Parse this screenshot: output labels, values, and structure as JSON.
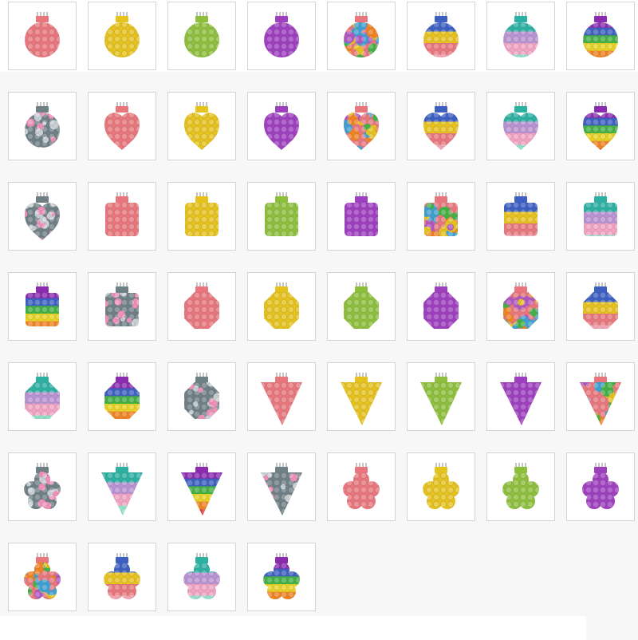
{
  "palettes": {
    "pink": [
      "#e8767c"
    ],
    "yellow": [
      "#e6c21c"
    ],
    "green": [
      "#8dbf3c"
    ],
    "purple": [
      "#9e3fbf"
    ],
    "rainbow": [
      "#3d5fc2",
      "#e8c21c",
      "#e8767c",
      "#f2a6b4"
    ],
    "pastel": [
      "#2bb0a2",
      "#b992d2",
      "#f2a2c2",
      "#92e0c8"
    ],
    "rainbow6": [
      "#8b2bb0",
      "#3d5fc2",
      "#43b043",
      "#e8d222",
      "#f08222",
      "#e03232"
    ],
    "tiedye": [
      "#e8767c",
      "#e6c21c",
      "#43b043",
      "#3d9fd2",
      "#b055c0",
      "#f08222"
    ],
    "camo": [
      "#6f7f86",
      "#f08fb8",
      "#c8d0d4"
    ]
  },
  "grid": {
    "columns": 8,
    "items": [
      {
        "shape": "round",
        "palette": "pink"
      },
      {
        "shape": "round",
        "palette": "yellow"
      },
      {
        "shape": "round",
        "palette": "green"
      },
      {
        "shape": "round",
        "palette": "purple"
      },
      {
        "shape": "round",
        "palette": "tiedye"
      },
      {
        "shape": "round",
        "palette": "rainbow"
      },
      {
        "shape": "round",
        "palette": "pastel"
      },
      {
        "shape": "round",
        "palette": "rainbow6"
      },
      {
        "shape": "round",
        "palette": "camo"
      },
      {
        "shape": "heart",
        "palette": "pink"
      },
      {
        "shape": "heart",
        "palette": "yellow"
      },
      {
        "shape": "heart",
        "palette": "purple"
      },
      {
        "shape": "heart",
        "palette": "tiedye"
      },
      {
        "shape": "heart",
        "palette": "rainbow"
      },
      {
        "shape": "heart",
        "palette": "pastel"
      },
      {
        "shape": "heart",
        "palette": "rainbow6"
      },
      {
        "shape": "heart",
        "palette": "camo"
      },
      {
        "shape": "square",
        "palette": "pink"
      },
      {
        "shape": "square",
        "palette": "yellow"
      },
      {
        "shape": "square",
        "palette": "green"
      },
      {
        "shape": "square",
        "palette": "purple"
      },
      {
        "shape": "square",
        "palette": "tiedye"
      },
      {
        "shape": "square",
        "palette": "rainbow"
      },
      {
        "shape": "square",
        "palette": "pastel"
      },
      {
        "shape": "square",
        "palette": "rainbow6"
      },
      {
        "shape": "square",
        "palette": "camo"
      },
      {
        "shape": "octagon",
        "palette": "pink"
      },
      {
        "shape": "octagon",
        "palette": "yellow"
      },
      {
        "shape": "octagon",
        "palette": "green"
      },
      {
        "shape": "octagon",
        "palette": "purple"
      },
      {
        "shape": "octagon",
        "palette": "tiedye"
      },
      {
        "shape": "octagon",
        "palette": "rainbow"
      },
      {
        "shape": "octagon",
        "palette": "pastel"
      },
      {
        "shape": "octagon",
        "palette": "rainbow6"
      },
      {
        "shape": "octagon",
        "palette": "camo"
      },
      {
        "shape": "triangle",
        "palette": "pink"
      },
      {
        "shape": "triangle",
        "palette": "yellow"
      },
      {
        "shape": "triangle",
        "palette": "green"
      },
      {
        "shape": "triangle",
        "palette": "purple"
      },
      {
        "shape": "triangle",
        "palette": "tiedye"
      },
      {
        "shape": "flower",
        "palette": "camo"
      },
      {
        "shape": "triangle",
        "palette": "pastel"
      },
      {
        "shape": "triangle",
        "palette": "rainbow6"
      },
      {
        "shape": "triangle",
        "palette": "camo"
      },
      {
        "shape": "flower",
        "palette": "pink"
      },
      {
        "shape": "flower",
        "palette": "yellow"
      },
      {
        "shape": "flower",
        "palette": "green"
      },
      {
        "shape": "flower",
        "palette": "purple"
      },
      {
        "shape": "flower",
        "palette": "tiedye"
      },
      {
        "shape": "flower",
        "palette": "rainbow"
      },
      {
        "shape": "flower",
        "palette": "pastel"
      },
      {
        "shape": "flower",
        "palette": "rainbow6"
      }
    ]
  }
}
